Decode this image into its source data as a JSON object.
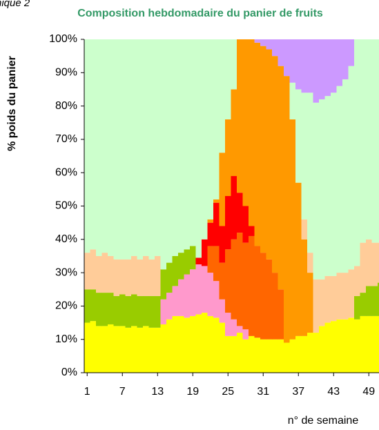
{
  "chart_data": {
    "type": "stacked-bar",
    "corner_text": "nique 2",
    "title": "Composition hebdomadaire du panier de fruits",
    "y_label": "% poids du panier",
    "x_label": "n° de semaine",
    "x": [
      1,
      2,
      3,
      4,
      5,
      6,
      7,
      8,
      9,
      10,
      11,
      12,
      13,
      14,
      15,
      16,
      17,
      18,
      19,
      20,
      21,
      22,
      23,
      24,
      25,
      26,
      27,
      28,
      29,
      30,
      31,
      32,
      33,
      34,
      35,
      36,
      37,
      38,
      39,
      40,
      41,
      42,
      43,
      44,
      45,
      46,
      47,
      48,
      49,
      50,
      51,
      52
    ],
    "xlim": [
      0.5,
      52.5
    ],
    "xticks": [
      1,
      7,
      13,
      19,
      25,
      31,
      37,
      43,
      49
    ],
    "ylim": [
      0,
      100
    ],
    "yticks": [
      {
        "value": 0,
        "label": "0%"
      },
      {
        "value": 10,
        "label": "10%"
      },
      {
        "value": 20,
        "label": "20%"
      },
      {
        "value": 30,
        "label": "30%"
      },
      {
        "value": 40,
        "label": "40%"
      },
      {
        "value": 50,
        "label": "50%"
      },
      {
        "value": 60,
        "label": "60%"
      },
      {
        "value": 70,
        "label": "70%"
      },
      {
        "value": 80,
        "label": "80%"
      },
      {
        "value": 90,
        "label": "90%"
      },
      {
        "value": 100,
        "label": "100%"
      }
    ],
    "series": [
      {
        "color": "#ffff00",
        "values": [
          15,
          15.5,
          14,
          14,
          14.5,
          14,
          14,
          13.5,
          14,
          13.5,
          14,
          13.5,
          13.5,
          14.5,
          16,
          17,
          17,
          16.5,
          17,
          17.5,
          18,
          17,
          16.5,
          15,
          11,
          11,
          12,
          10,
          11,
          10.5,
          10,
          10,
          10,
          10,
          9,
          10,
          11,
          11,
          12,
          12,
          14,
          15,
          15.5,
          16,
          16,
          16.5,
          16,
          17,
          17,
          17,
          17,
          17
        ]
      },
      {
        "color": "#ff99cc",
        "values": [
          0,
          0,
          0,
          0,
          0,
          0,
          0,
          0,
          0,
          0,
          0,
          0,
          0,
          7.5,
          8,
          9,
          11,
          13,
          14,
          15,
          14,
          13,
          11,
          7,
          7,
          5,
          2,
          3,
          0,
          0,
          0,
          0,
          0,
          0,
          0,
          0,
          0,
          0,
          0,
          0,
          0,
          0,
          0,
          0,
          0,
          0,
          0,
          0,
          0,
          0,
          0,
          0
        ]
      },
      {
        "color": "#ff6600",
        "values": [
          0,
          0,
          0,
          0,
          0,
          0,
          0,
          0,
          0,
          0,
          0,
          0,
          0,
          0,
          0,
          0,
          0,
          0,
          0,
          0,
          0,
          8,
          10.5,
          11,
          19,
          24,
          28,
          26,
          30,
          27.5,
          26,
          24,
          20,
          15,
          0,
          0,
          0,
          0,
          0,
          0,
          0,
          0,
          0,
          0,
          0,
          0,
          0,
          0,
          0,
          0,
          0,
          0
        ]
      },
      {
        "color": "#ff0000",
        "values": [
          0,
          0,
          0,
          0,
          0,
          0,
          0,
          0,
          0,
          0,
          0,
          0,
          0,
          0,
          0,
          0,
          0,
          0,
          0,
          2,
          8,
          7,
          13,
          11,
          16,
          19,
          12,
          11,
          3,
          0,
          0,
          0,
          0,
          0,
          0,
          0,
          0,
          0,
          0,
          0,
          0,
          0,
          0,
          0,
          0,
          0,
          0,
          0,
          0,
          0,
          0,
          0
        ]
      },
      {
        "color": "#ff9900",
        "values": [
          0,
          0,
          0,
          0,
          0,
          0,
          0,
          0,
          0,
          0,
          0,
          0,
          0,
          0,
          0,
          0,
          0,
          0,
          0,
          0,
          0,
          1,
          1,
          22,
          23,
          26,
          46,
          50,
          56,
          61,
          62,
          63,
          65,
          67,
          80,
          66,
          46,
          29,
          18,
          0,
          0,
          0,
          0,
          0,
          0,
          0,
          0,
          0,
          0,
          0,
          0,
          0
        ]
      },
      {
        "color": "#99cc00",
        "values": [
          10,
          9.5,
          10,
          10,
          9.5,
          9,
          9.5,
          9.5,
          9.5,
          9.5,
          9,
          9.5,
          9.5,
          9,
          9,
          9,
          8,
          7.5,
          7,
          0,
          0,
          0,
          0,
          0,
          0,
          0,
          0,
          0,
          0,
          0,
          0,
          0,
          0,
          0,
          0,
          0,
          0,
          0,
          0,
          0,
          0,
          0,
          0,
          0,
          0,
          0,
          7,
          7,
          9,
          9,
          10,
          10
        ]
      },
      {
        "color": "#ffcc99",
        "values": [
          11,
          12,
          11,
          12,
          11,
          11,
          10.5,
          11,
          11.5,
          11,
          12,
          11,
          12,
          0,
          0,
          0,
          0,
          0,
          0,
          0,
          0,
          0,
          0,
          0,
          0,
          0,
          0,
          0,
          0,
          0,
          0,
          0,
          0,
          0,
          0,
          0,
          0,
          6,
          6,
          16,
          14,
          14,
          13.5,
          14,
          14,
          14.5,
          9,
          15,
          14,
          13,
          12,
          13
        ]
      },
      {
        "color": "#ccffcc",
        "values": [
          64,
          63,
          65,
          64,
          65,
          66,
          66,
          66,
          65,
          66,
          65,
          66,
          65,
          69,
          67,
          65,
          64,
          63,
          62,
          65.5,
          60,
          54,
          48,
          34,
          24,
          15,
          0,
          0,
          0,
          0,
          0,
          0,
          0,
          0,
          0,
          11,
          28,
          38,
          48,
          53,
          54,
          54,
          55,
          56,
          58,
          61,
          68,
          61,
          60,
          61,
          61,
          60
        ]
      },
      {
        "color": "#cc99ff",
        "values": [
          0,
          0,
          0,
          0,
          0,
          0,
          0,
          0,
          0,
          0,
          0,
          0,
          0,
          0,
          0,
          0,
          0,
          0,
          0,
          0,
          0,
          0,
          0,
          0,
          0,
          0,
          0,
          0,
          0,
          1,
          2,
          3,
          5,
          8,
          11,
          13,
          15,
          16,
          16,
          19,
          18,
          17,
          16,
          14,
          12,
          8,
          0,
          0,
          0,
          0,
          0,
          0
        ]
      }
    ]
  }
}
